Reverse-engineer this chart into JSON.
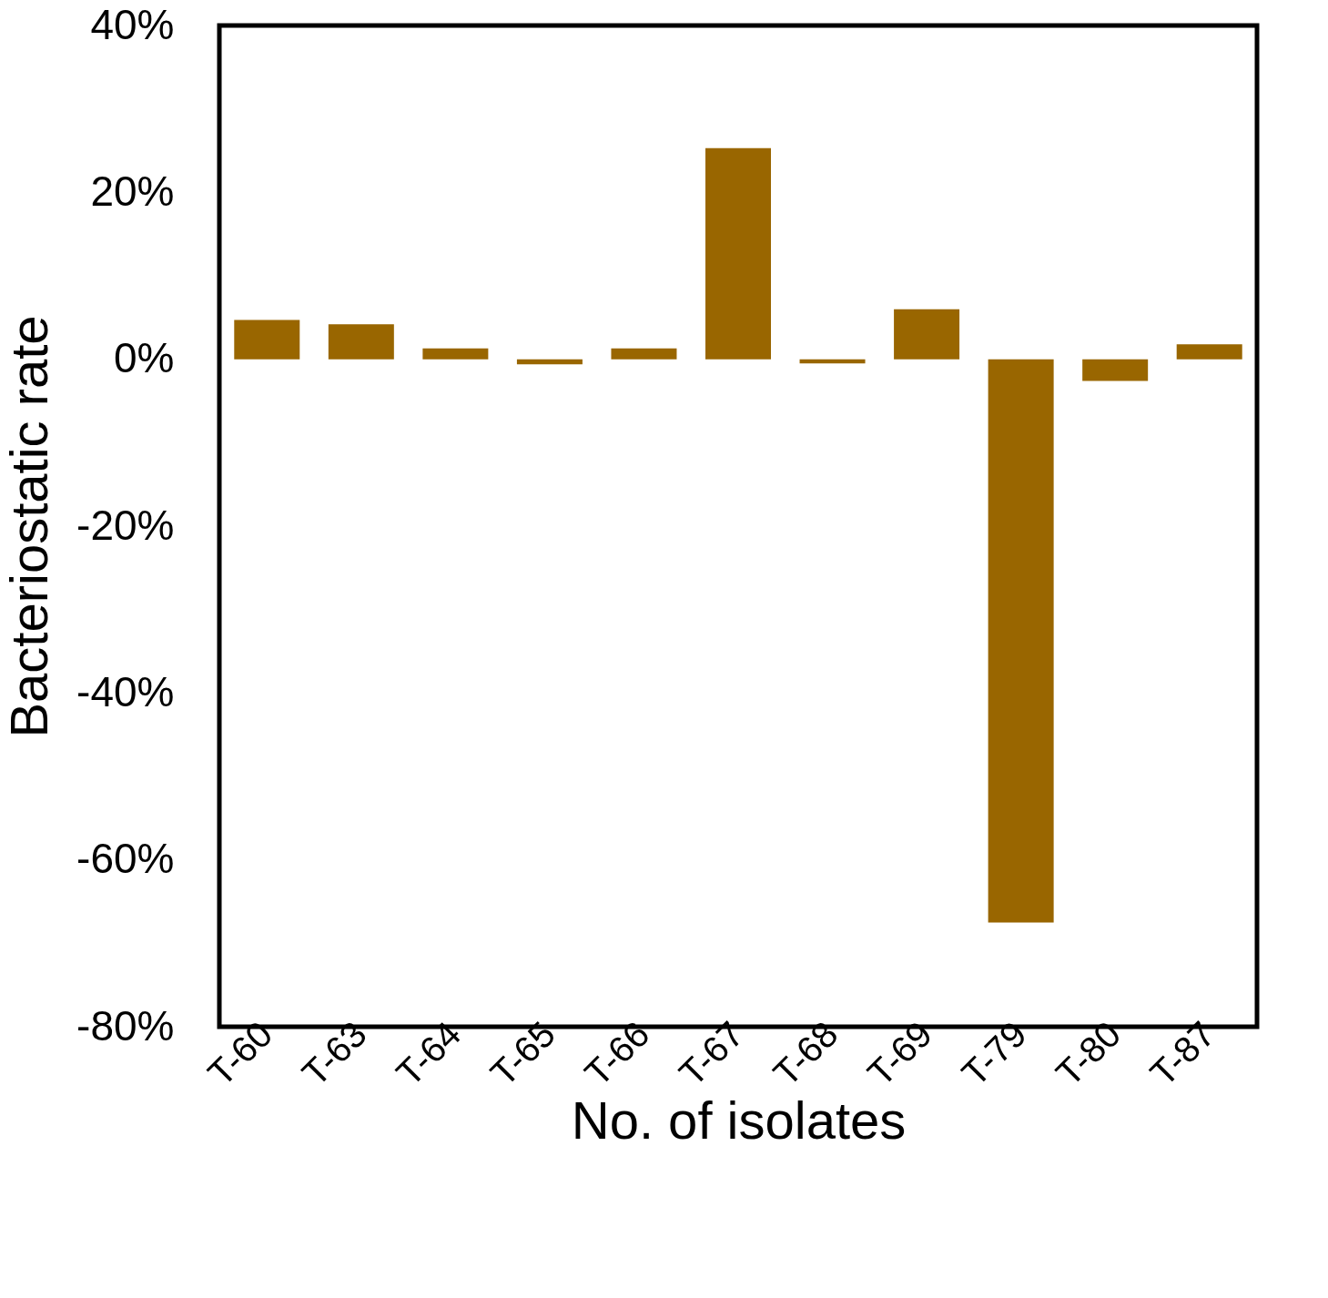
{
  "chart_data": {
    "type": "bar",
    "xlabel": "No. of isolates",
    "ylabel": "Bacteriostatic rate",
    "categories": [
      "T-60",
      "T-63",
      "T-64",
      "T-65",
      "T-66",
      "T-67",
      "T-68",
      "T-69",
      "T-79",
      "T-80",
      "T-87"
    ],
    "values": [
      4.7,
      4.2,
      1.3,
      -0.6,
      1.3,
      25.3,
      -0.5,
      6.0,
      -67.5,
      -2.6,
      1.8
    ],
    "color": "#996600",
    "ylim": [
      -80,
      40
    ],
    "yticks": [
      {
        "value": -80,
        "label": "-80%"
      },
      {
        "value": -60,
        "label": "-60%"
      },
      {
        "value": -40,
        "label": "-40%"
      },
      {
        "value": -20,
        "label": "-20%"
      },
      {
        "value": 0,
        "label": "0%"
      },
      {
        "value": 20,
        "label": "20%"
      },
      {
        "value": 40,
        "label": "40%"
      }
    ],
    "grid": false
  }
}
